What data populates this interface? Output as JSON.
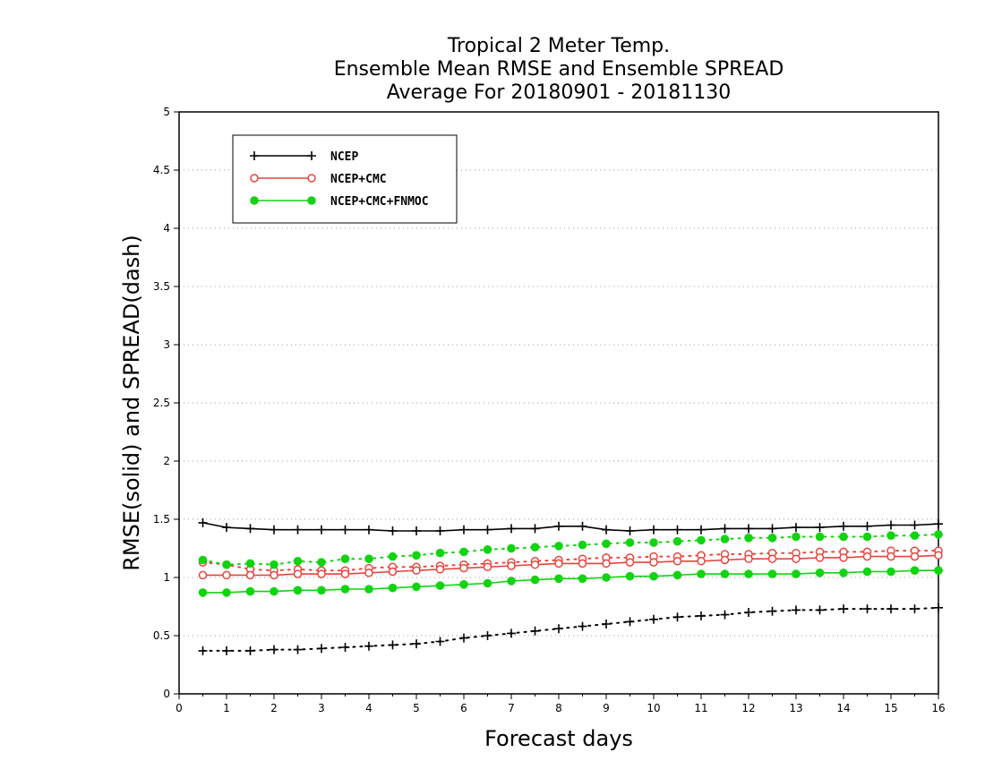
{
  "chart_data": {
    "type": "line",
    "title_lines": [
      "Tropical 2 Meter Temp.",
      "Ensemble Mean RMSE and Ensemble SPREAD",
      "Average For 20180901 - 20181130"
    ],
    "xlabel": "Forecast days",
    "ylabel": "RMSE(solid) and SPREAD(dash)",
    "xlim": [
      0,
      16
    ],
    "ylim": [
      0,
      5
    ],
    "x_ticks": [
      "0",
      "1",
      "2",
      "3",
      "4",
      "5",
      "6",
      "7",
      "8",
      "9",
      "10",
      "11",
      "12",
      "13",
      "14",
      "15",
      "16"
    ],
    "y_ticks": [
      "0",
      "0.5",
      "1",
      "1.5",
      "2",
      "2.5",
      "3",
      "3.5",
      "4",
      "4.5",
      "5"
    ],
    "grid": "horizontal-dotted",
    "legend_position": "top-left",
    "x": [
      0.5,
      1,
      1.5,
      2,
      2.5,
      3,
      3.5,
      4,
      4.5,
      5,
      5.5,
      6,
      6.5,
      7,
      7.5,
      8,
      8.5,
      9,
      9.5,
      10,
      10.5,
      11,
      11.5,
      12,
      12.5,
      13,
      13.5,
      14,
      14.5,
      15,
      15.5,
      16
    ],
    "series": [
      {
        "name": "NCEP",
        "color": "#000000",
        "marker": "plus",
        "rmse": [
          1.47,
          1.43,
          1.42,
          1.41,
          1.41,
          1.41,
          1.41,
          1.41,
          1.4,
          1.4,
          1.4,
          1.41,
          1.41,
          1.42,
          1.42,
          1.44,
          1.44,
          1.41,
          1.4,
          1.41,
          1.41,
          1.41,
          1.42,
          1.42,
          1.42,
          1.43,
          1.43,
          1.44,
          1.44,
          1.45,
          1.45,
          1.46
        ],
        "spread": [
          0.37,
          0.37,
          0.37,
          0.38,
          0.38,
          0.39,
          0.4,
          0.41,
          0.42,
          0.43,
          0.45,
          0.48,
          0.5,
          0.52,
          0.54,
          0.56,
          0.58,
          0.6,
          0.62,
          0.64,
          0.66,
          0.67,
          0.68,
          0.7,
          0.71,
          0.72,
          0.72,
          0.73,
          0.73,
          0.73,
          0.73,
          0.74
        ]
      },
      {
        "name": "NCEP+CMC",
        "color": "#e8443c",
        "marker": "open-circle",
        "rmse": [
          1.02,
          1.02,
          1.02,
          1.02,
          1.03,
          1.03,
          1.03,
          1.04,
          1.05,
          1.06,
          1.07,
          1.08,
          1.09,
          1.1,
          1.11,
          1.12,
          1.12,
          1.12,
          1.13,
          1.13,
          1.14,
          1.14,
          1.15,
          1.16,
          1.16,
          1.16,
          1.17,
          1.17,
          1.18,
          1.18,
          1.18,
          1.19
        ],
        "spread": [
          1.13,
          1.11,
          1.07,
          1.06,
          1.07,
          1.06,
          1.06,
          1.08,
          1.09,
          1.09,
          1.1,
          1.11,
          1.12,
          1.13,
          1.14,
          1.15,
          1.16,
          1.17,
          1.17,
          1.18,
          1.18,
          1.19,
          1.2,
          1.2,
          1.21,
          1.21,
          1.22,
          1.22,
          1.22,
          1.23,
          1.23,
          1.23
        ]
      },
      {
        "name": "NCEP+CMC+FNMOC",
        "color": "#11d411",
        "marker": "filled-circle",
        "rmse": [
          0.87,
          0.87,
          0.88,
          0.88,
          0.89,
          0.89,
          0.9,
          0.9,
          0.91,
          0.92,
          0.93,
          0.94,
          0.95,
          0.97,
          0.98,
          0.99,
          0.99,
          1.0,
          1.01,
          1.01,
          1.02,
          1.03,
          1.03,
          1.03,
          1.03,
          1.03,
          1.04,
          1.04,
          1.05,
          1.05,
          1.06,
          1.06
        ],
        "spread": [
          1.15,
          1.11,
          1.12,
          1.11,
          1.14,
          1.13,
          1.16,
          1.16,
          1.18,
          1.19,
          1.21,
          1.22,
          1.24,
          1.25,
          1.26,
          1.27,
          1.28,
          1.29,
          1.3,
          1.3,
          1.31,
          1.32,
          1.33,
          1.34,
          1.34,
          1.35,
          1.35,
          1.35,
          1.35,
          1.36,
          1.36,
          1.37
        ]
      }
    ]
  }
}
